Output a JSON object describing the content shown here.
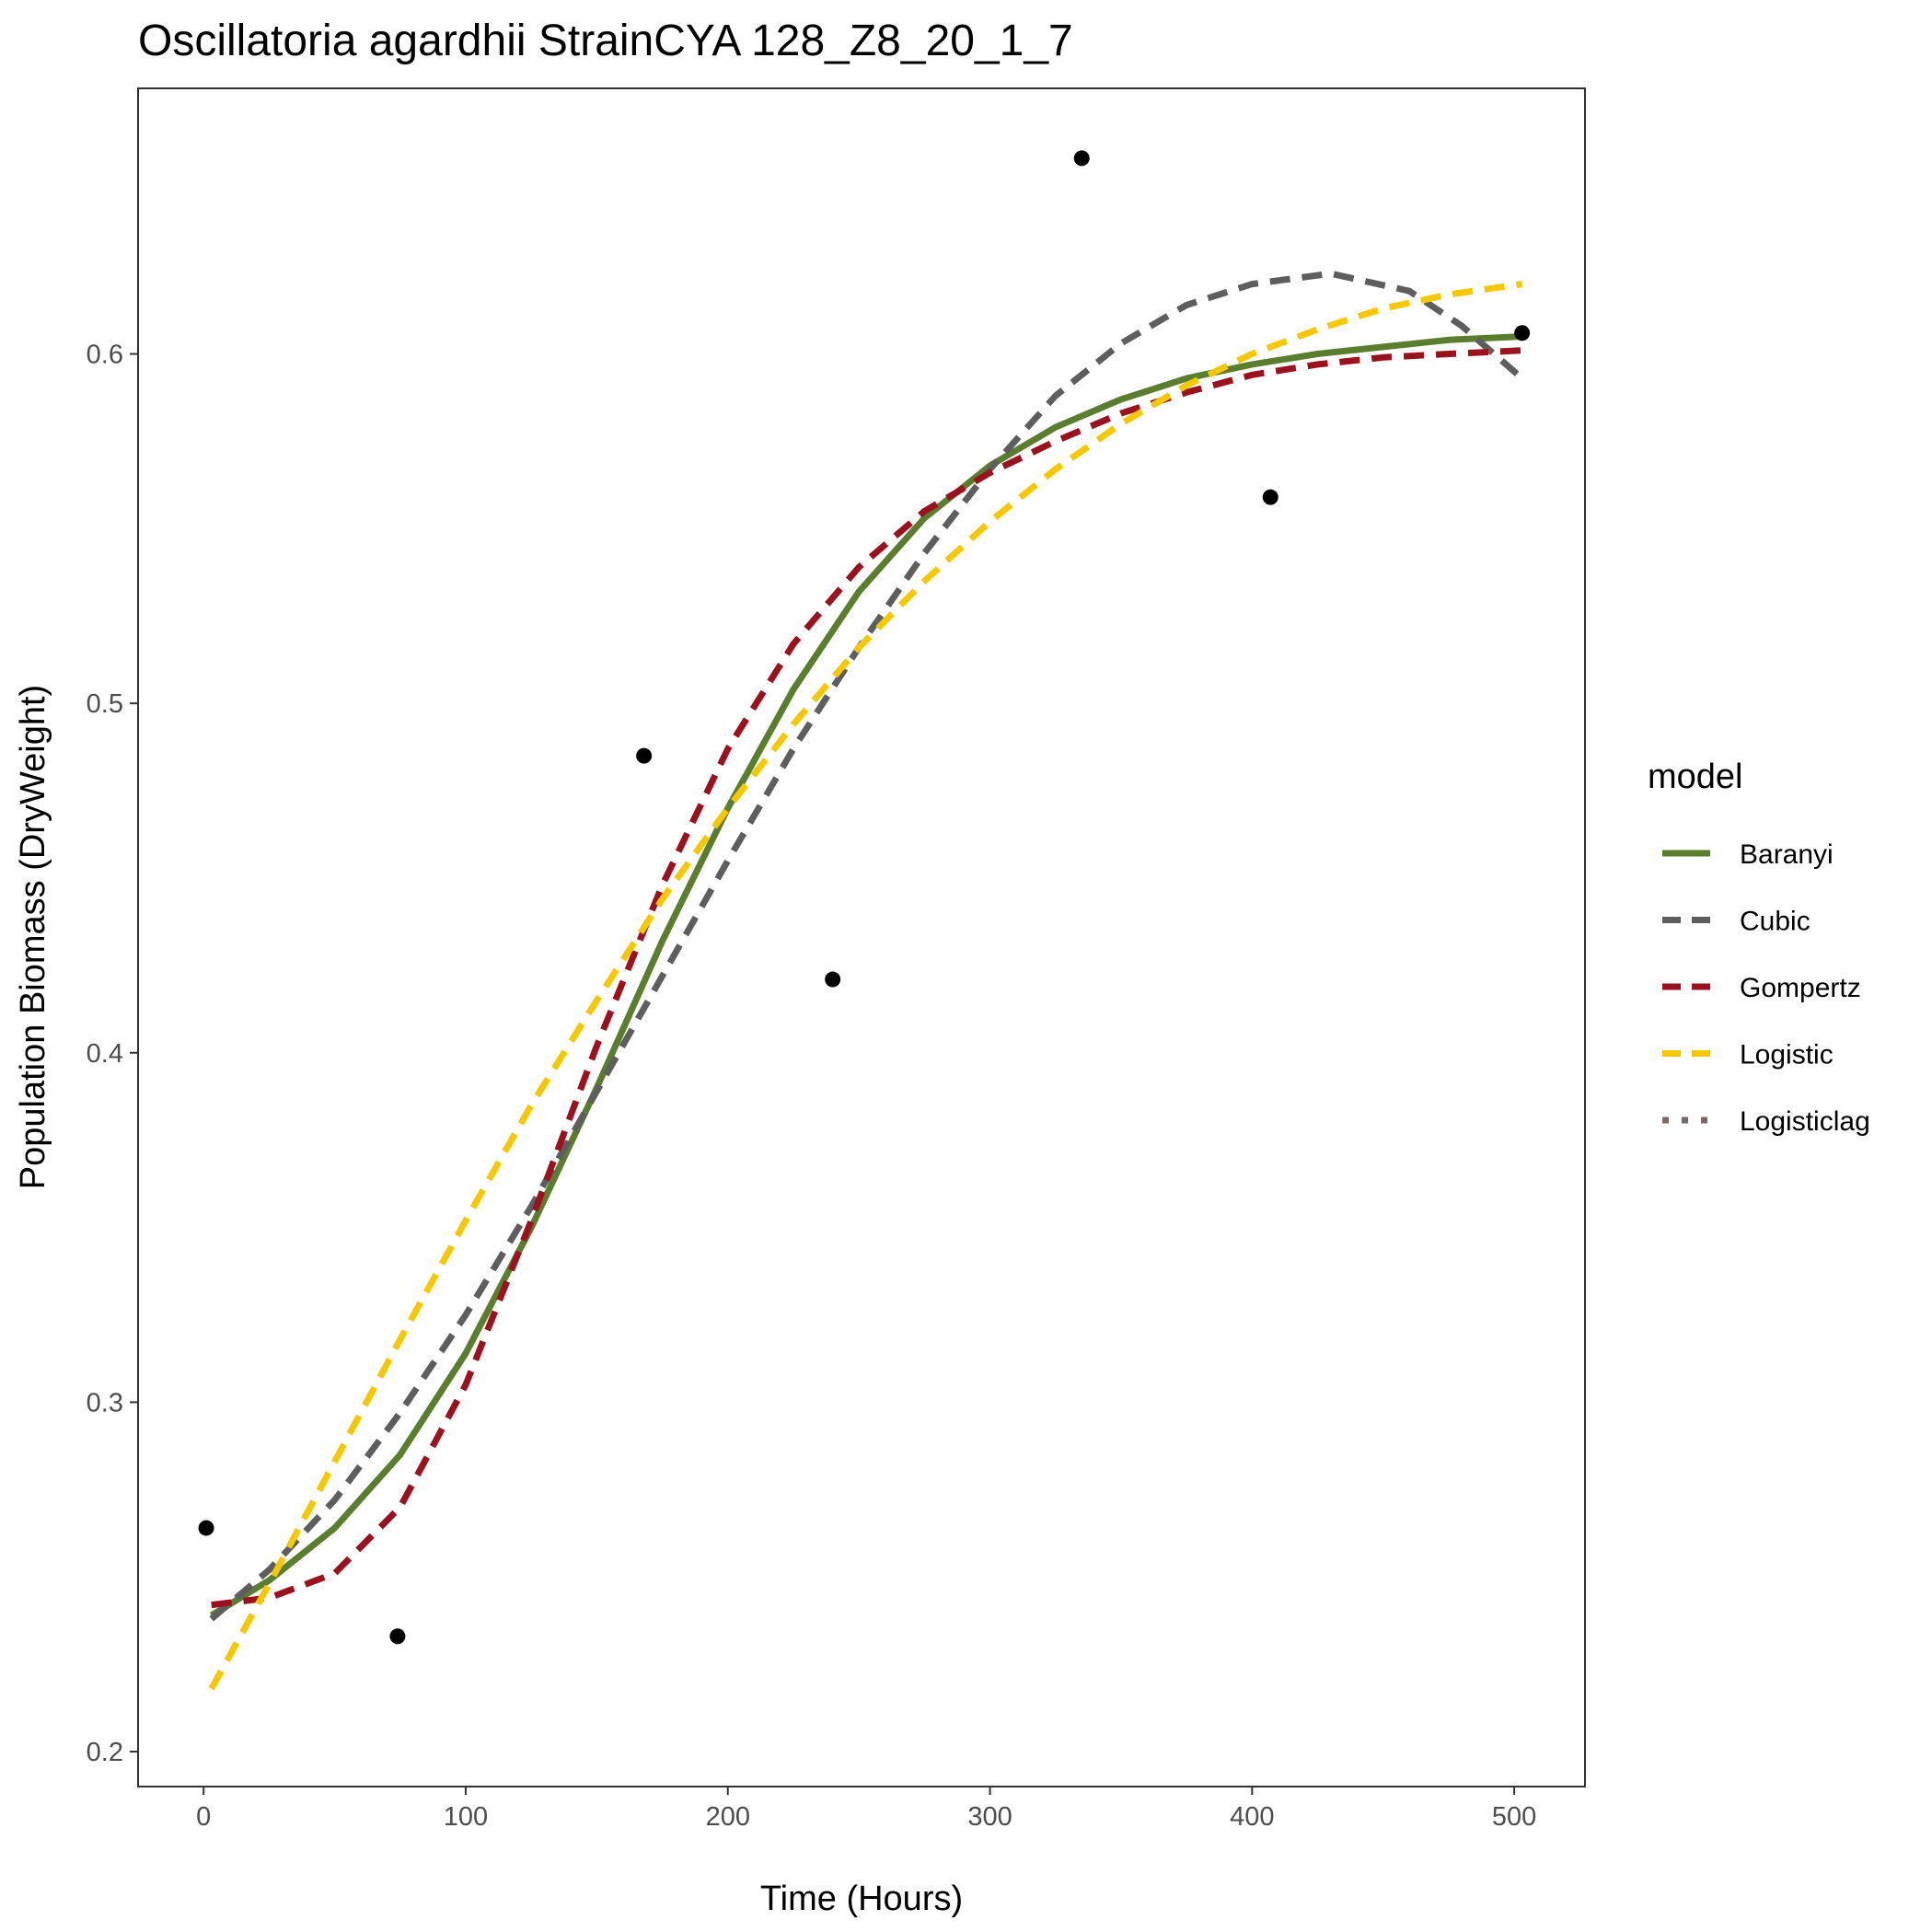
{
  "chart_data": {
    "type": "line",
    "title": "Oscillatoria agardhii StrainCYA 128_Z8_20_1_7",
    "xlabel": "Time (Hours)",
    "ylabel": "Population Biomass (DryWeight)",
    "xlim": [
      -25,
      527
    ],
    "ylim": [
      0.19,
      0.676
    ],
    "x_ticks": [
      0,
      100,
      200,
      300,
      400,
      500
    ],
    "y_ticks": [
      0.2,
      0.3,
      0.4,
      0.5,
      0.6
    ],
    "x_tick_labels": [
      "0",
      "100",
      "200",
      "300",
      "400",
      "500"
    ],
    "y_tick_labels": [
      "0.2",
      "0.3",
      "0.4",
      "0.5",
      "0.6"
    ],
    "grid": false,
    "legend": {
      "title": "model",
      "position": "right"
    },
    "points": {
      "x": [
        1,
        74,
        168,
        240,
        335,
        407,
        503
      ],
      "y": [
        0.264,
        0.233,
        0.485,
        0.421,
        0.656,
        0.559,
        0.606
      ],
      "color": "#000000"
    },
    "series": [
      {
        "name": "Baranyi",
        "color": "#5a7d2e",
        "dash": "solid",
        "x": [
          3,
          25,
          50,
          75,
          100,
          125,
          150,
          175,
          200,
          225,
          250,
          275,
          300,
          325,
          350,
          375,
          400,
          425,
          450,
          475,
          503
        ],
        "y": [
          0.239,
          0.249,
          0.264,
          0.285,
          0.314,
          0.35,
          0.39,
          0.432,
          0.47,
          0.504,
          0.532,
          0.553,
          0.568,
          0.579,
          0.587,
          0.593,
          0.597,
          0.6,
          0.602,
          0.604,
          0.605
        ]
      },
      {
        "name": "Cubic",
        "color": "#5e5e5e",
        "dash": "dashed",
        "x": [
          3,
          25,
          50,
          75,
          100,
          125,
          150,
          175,
          200,
          225,
          250,
          275,
          300,
          325,
          350,
          375,
          400,
          430,
          460,
          480,
          503
        ],
        "y": [
          0.238,
          0.252,
          0.272,
          0.297,
          0.325,
          0.356,
          0.389,
          0.422,
          0.455,
          0.487,
          0.516,
          0.543,
          0.567,
          0.588,
          0.603,
          0.614,
          0.62,
          0.623,
          0.618,
          0.608,
          0.593
        ]
      },
      {
        "name": "Gompertz",
        "color": "#9b111e",
        "dash": "dashed",
        "x": [
          3,
          25,
          50,
          75,
          100,
          125,
          150,
          175,
          200,
          225,
          250,
          275,
          300,
          325,
          350,
          375,
          400,
          425,
          450,
          475,
          503
        ],
        "y": [
          0.242,
          0.244,
          0.251,
          0.27,
          0.305,
          0.352,
          0.402,
          0.448,
          0.487,
          0.517,
          0.539,
          0.555,
          0.566,
          0.575,
          0.583,
          0.589,
          0.594,
          0.597,
          0.599,
          0.6,
          0.601
        ]
      },
      {
        "name": "Logistic",
        "color": "#f5c800",
        "dash": "dashed",
        "x": [
          3,
          25,
          50,
          75,
          100,
          125,
          150,
          175,
          200,
          225,
          250,
          275,
          300,
          325,
          350,
          375,
          400,
          425,
          450,
          475,
          503
        ],
        "y": [
          0.218,
          0.248,
          0.283,
          0.318,
          0.352,
          0.385,
          0.415,
          0.444,
          0.47,
          0.494,
          0.516,
          0.535,
          0.552,
          0.567,
          0.58,
          0.591,
          0.6,
          0.607,
          0.613,
          0.617,
          0.62
        ]
      },
      {
        "name": "Logisticlag",
        "color": "#7a6a6a",
        "dash": "dotted",
        "x": [],
        "y": []
      }
    ]
  }
}
